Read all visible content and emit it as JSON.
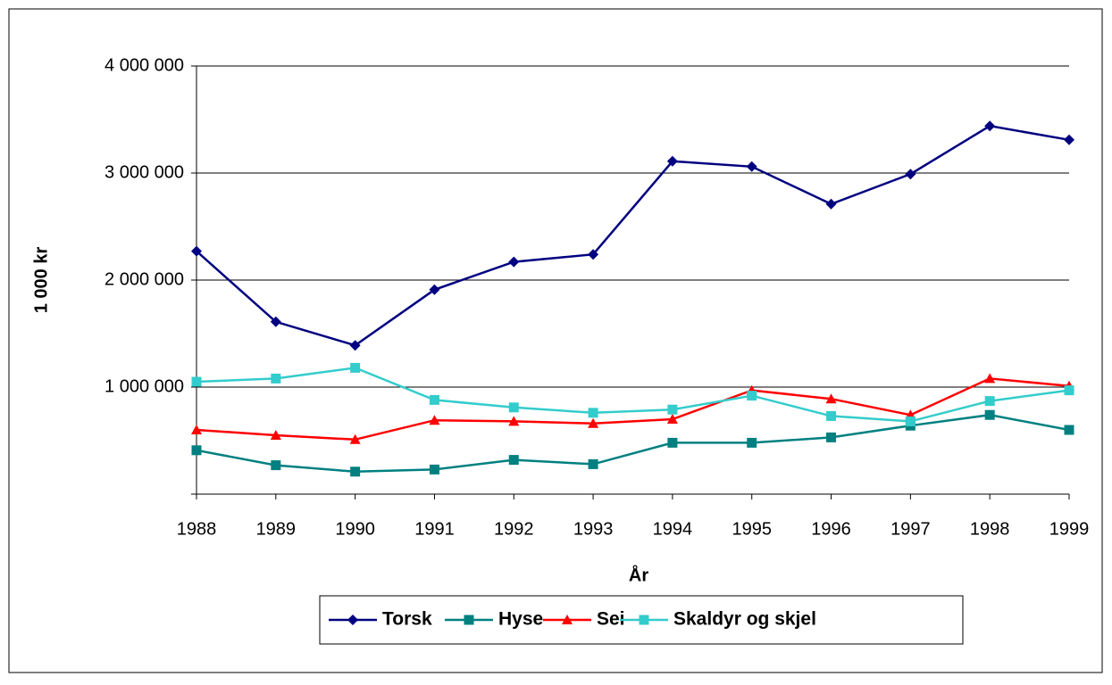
{
  "chart_data": {
    "type": "line",
    "y_label": "1 000 kr",
    "x_label": "År",
    "categories": [
      "1988",
      "1989",
      "1990",
      "1991",
      "1992",
      "1993",
      "1994",
      "1995",
      "1996",
      "1997",
      "1998",
      "1999"
    ],
    "series": [
      {
        "name": "Torsk",
        "color": "#000080",
        "marker": "diamond",
        "values": [
          2270000,
          1610000,
          1390000,
          1910000,
          2170000,
          2240000,
          3110000,
          3060000,
          2710000,
          2990000,
          3440000,
          3310000
        ]
      },
      {
        "name": "Hyse",
        "color": "#008080",
        "marker": "square",
        "values": [
          410000,
          270000,
          210000,
          230000,
          320000,
          280000,
          480000,
          480000,
          530000,
          640000,
          740000,
          600000
        ]
      },
      {
        "name": "Sei",
        "color": "#ff0000",
        "marker": "triangle",
        "values": [
          600000,
          550000,
          510000,
          690000,
          680000,
          660000,
          700000,
          970000,
          890000,
          740000,
          1080000,
          1010000
        ]
      },
      {
        "name": "Skaldyr og skjel",
        "color": "#33cccc",
        "marker": "square",
        "values": [
          1050000,
          1080000,
          1180000,
          880000,
          810000,
          760000,
          790000,
          920000,
          730000,
          680000,
          870000,
          970000
        ]
      }
    ],
    "ylim": [
      0,
      4000000
    ],
    "yticks": [
      {
        "value": 1000000,
        "label": "1 000 000"
      },
      {
        "value": 2000000,
        "label": "2 000 000"
      },
      {
        "value": 3000000,
        "label": "3 000 000"
      },
      {
        "value": 4000000,
        "label": "4 000 000"
      }
    ],
    "grid": true,
    "legend": "bottom"
  }
}
